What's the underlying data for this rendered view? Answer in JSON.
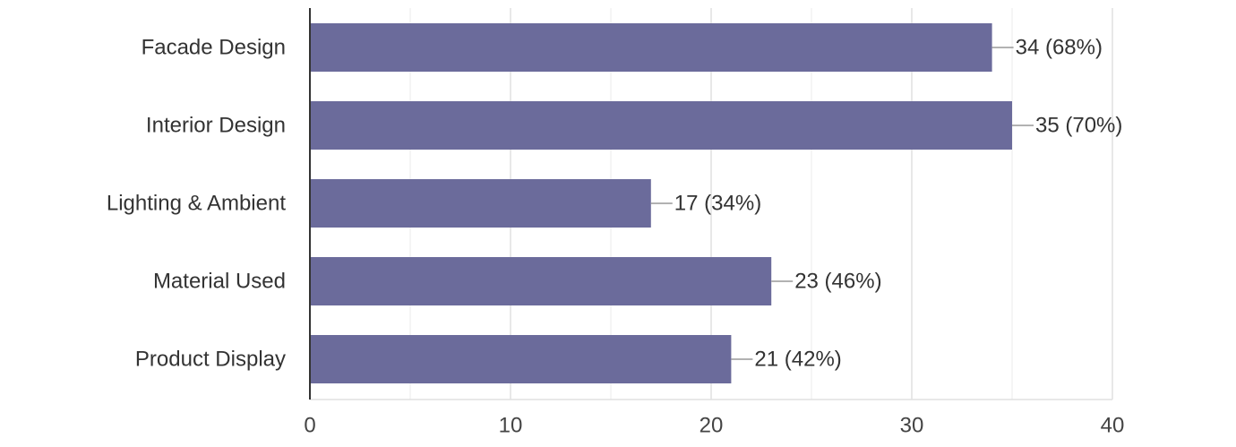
{
  "chart_data": {
    "type": "bar",
    "orientation": "horizontal",
    "categories": [
      "Facade Design",
      "Interior Design",
      "Lighting & Ambient",
      "Material Used",
      "Product Display"
    ],
    "values": [
      34,
      35,
      17,
      23,
      21
    ],
    "data_labels": [
      "34 (68%)",
      "35 (70%)",
      "17 (34%)",
      "23 (46%)",
      "21 (42%)"
    ],
    "xlim": [
      0,
      40
    ],
    "x_ticks": [
      0,
      10,
      20,
      30,
      40
    ],
    "x_tick_labels": [
      "0",
      "10",
      "20",
      "30",
      "40"
    ],
    "grid": true,
    "legend": "none",
    "colors": {
      "bar": "#6b6b9b",
      "grid_major": "#e0e0e0",
      "grid_minor": "#f2f2f2",
      "axis": "#333333",
      "leader": "#999999"
    }
  }
}
